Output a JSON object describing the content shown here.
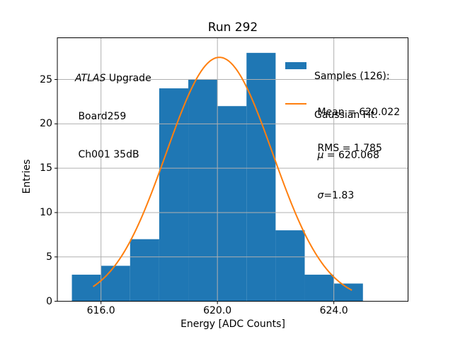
{
  "figure": {
    "title": "Run 292",
    "xlabel": "Energy [ADC Counts]",
    "ylabel": "Entries"
  },
  "annotation": {
    "line1_italic": "ATLAS",
    "line1_rest": " Upgrade",
    "line2": " Board259",
    "line3": " Ch001 35dB"
  },
  "legend": {
    "samples_title": "Samples (126):",
    "samples_mean": " Mean = 620.022",
    "samples_rms": " RMS = 1.785",
    "fit_title": "Gaussian Fit:",
    "fit_mu_symbol": " μ",
    "fit_mu_rest": " = 620.068",
    "fit_sigma_symbol": " σ",
    "fit_sigma_rest": "=1.83"
  },
  "chart_data": {
    "type": "bar",
    "subtype": "histogram_with_gaussian_fit",
    "title": "Run 292",
    "xlabel": "Energy [ADC Counts]",
    "ylabel": "Entries",
    "bin_edges": [
      615,
      616,
      617,
      618,
      619,
      620,
      621,
      622,
      623,
      624,
      625
    ],
    "counts": [
      3,
      4,
      7,
      24,
      25,
      22,
      28,
      8,
      3,
      2
    ],
    "n_samples": 126,
    "mean": 620.022,
    "rms": 1.785,
    "gaussian_fit": {
      "mu": 620.068,
      "sigma": 1.83,
      "amplitude": 27.5,
      "x_start": 615.73,
      "x_end": 624.62
    },
    "xlim": [
      614.5,
      626.55
    ],
    "ylim": [
      0,
      29.7
    ],
    "xticks": {
      "values": [
        616,
        620,
        624
      ],
      "labels": [
        "616.0",
        "620.0",
        "624.0"
      ]
    },
    "yticks": {
      "values": [
        0,
        5,
        10,
        15,
        20,
        25
      ],
      "labels": [
        "0",
        "5",
        "10",
        "15",
        "20",
        "25"
      ]
    },
    "grid": true,
    "grid_above_bars": true,
    "legend_position": "upper right",
    "legend_frame": false,
    "colors": {
      "hist": "#1f77b4",
      "fit_line": "#ff7f0e",
      "grid": "#b0b0b0",
      "spine": "#000000",
      "background": "#ffffff"
    }
  }
}
